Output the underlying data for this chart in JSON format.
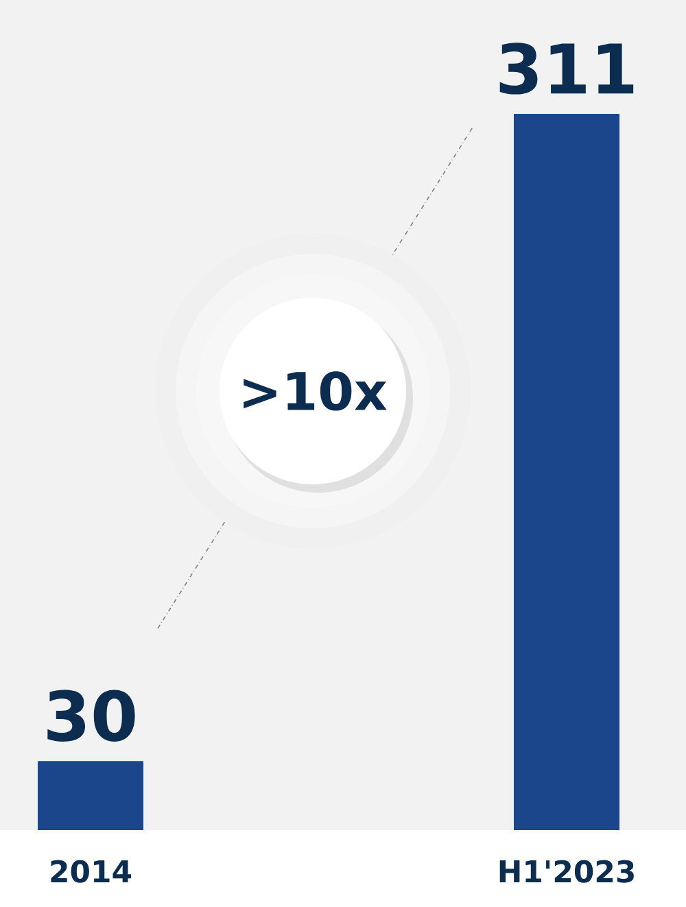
{
  "chart_data": {
    "type": "bar",
    "categories": [
      "2014",
      "H1'2023"
    ],
    "values": [
      30,
      311
    ],
    "color": "#1c468c",
    "data_labels": true,
    "annotations": [
      ">10x"
    ]
  }
}
